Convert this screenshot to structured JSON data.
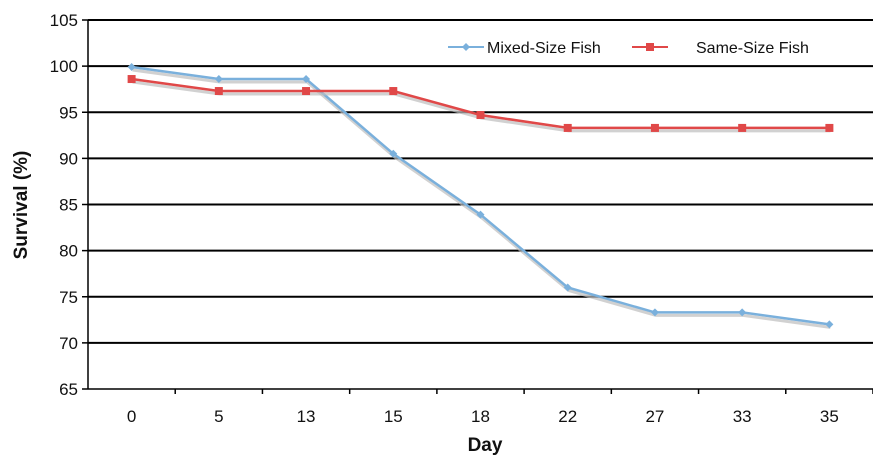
{
  "chart_data": {
    "type": "line",
    "title": "",
    "xlabel": "Day",
    "ylabel": "Survival (%)",
    "categories": [
      "0",
      "5",
      "13",
      "15",
      "18",
      "22",
      "27",
      "33",
      "35"
    ],
    "ylim": [
      65,
      105
    ],
    "yticks": [
      65,
      70,
      75,
      80,
      85,
      90,
      95,
      100,
      105
    ],
    "grid": true,
    "legend": "top-right",
    "series": [
      {
        "name": "Mixed-Size Fish",
        "color": "#7ab0dc",
        "marker": "diamond",
        "values": [
          99.9,
          98.6,
          98.6,
          90.5,
          83.9,
          76.0,
          73.3,
          73.3,
          72.0
        ]
      },
      {
        "name": "Same-Size Fish",
        "color": "#e04848",
        "marker": "square",
        "values": [
          98.6,
          97.3,
          97.3,
          97.3,
          94.7,
          93.3,
          93.3,
          93.3,
          93.3
        ]
      }
    ]
  }
}
